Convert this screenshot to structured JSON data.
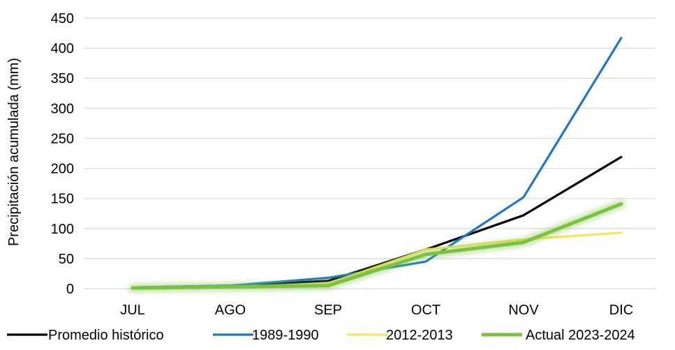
{
  "chart_data": {
    "type": "line",
    "title": "",
    "xlabel": "",
    "ylabel": "Precipitación acumulada (mm)",
    "categories": [
      "JUL",
      "AGO",
      "SEP",
      "OCT",
      "NOV",
      "DIC"
    ],
    "ylim": [
      0,
      450
    ],
    "yticks": [
      0,
      50,
      100,
      150,
      200,
      250,
      300,
      350,
      400,
      450
    ],
    "grid": true,
    "legend_position": "bottom",
    "series": [
      {
        "name": "Promedio histórico",
        "color": "#000000",
        "values": [
          2,
          5,
          13,
          65,
          122,
          219
        ]
      },
      {
        "name": "1989-1990",
        "color": "#1f77c3",
        "values": [
          2,
          5,
          18,
          45,
          152,
          417
        ]
      },
      {
        "name": "2012-2013",
        "color": "#f5e55a",
        "values": [
          2,
          3,
          8,
          65,
          82,
          93
        ]
      },
      {
        "name": "Actual 2023-2024",
        "color": "#7cc242",
        "glow": true,
        "values": [
          1,
          3,
          5,
          57,
          77,
          141
        ]
      }
    ]
  }
}
